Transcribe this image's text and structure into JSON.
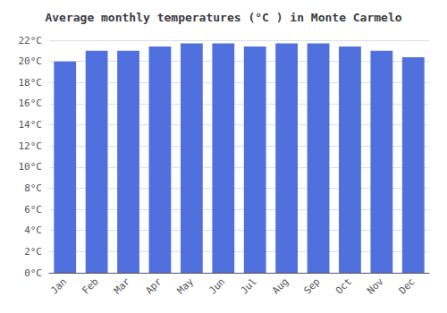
{
  "chart_data": {
    "type": "bar",
    "title": "Average monthly temperatures (°C ) in Monte Carmelo",
    "categories": [
      "Jan",
      "Feb",
      "Mar",
      "Apr",
      "May",
      "Jun",
      "Jul",
      "Aug",
      "Sep",
      "Oct",
      "Nov",
      "Dec"
    ],
    "values": [
      20.0,
      21.0,
      21.0,
      21.4,
      21.7,
      21.7,
      21.4,
      21.7,
      21.7,
      21.4,
      21.0,
      20.4
    ],
    "ylim": [
      0,
      22
    ],
    "yticks": [
      {
        "value": 0,
        "label": "0°C"
      },
      {
        "value": 2,
        "label": "2°C"
      },
      {
        "value": 4,
        "label": "4°C"
      },
      {
        "value": 6,
        "label": "6°C"
      },
      {
        "value": 8,
        "label": "8°C"
      },
      {
        "value": 10,
        "label": "10°C"
      },
      {
        "value": 12,
        "label": "12°C"
      },
      {
        "value": 14,
        "label": "14°C"
      },
      {
        "value": 16,
        "label": "16°C"
      },
      {
        "value": 18,
        "label": "18°C"
      },
      {
        "value": 20,
        "label": "20°C"
      },
      {
        "value": 22,
        "label": "22°C"
      }
    ],
    "grid": true
  }
}
